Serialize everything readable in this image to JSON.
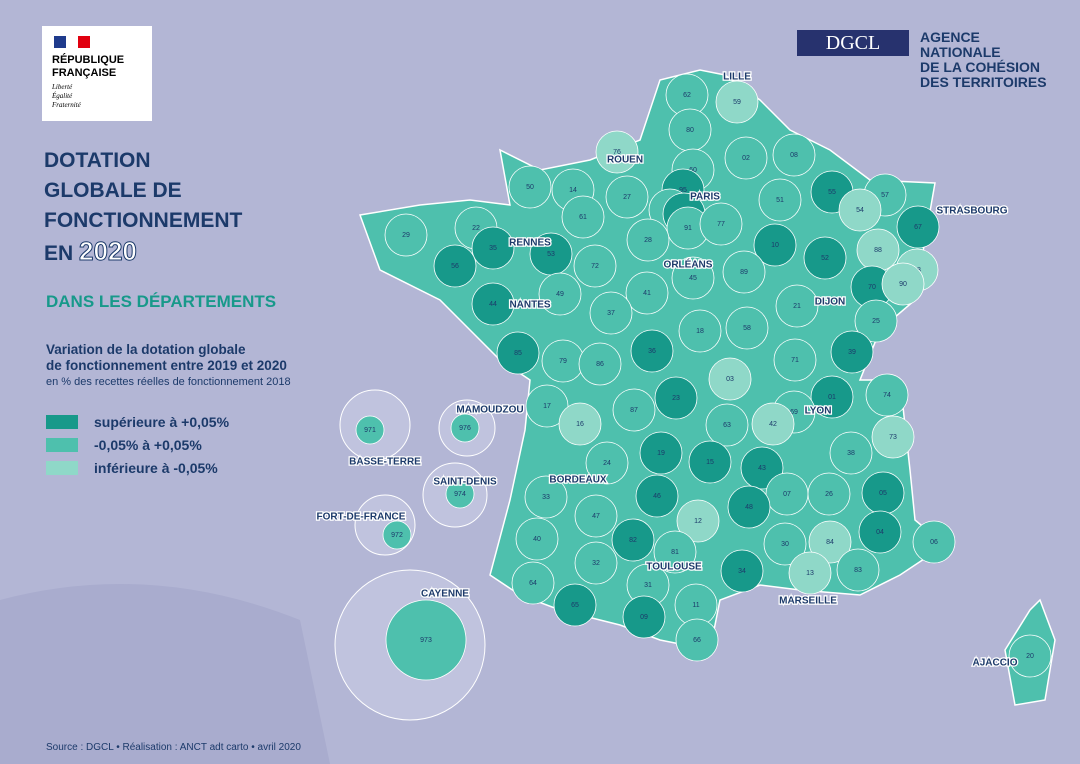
{
  "header": {
    "republic": [
      "RÉPUBLIQUE",
      "FRANÇAISE"
    ],
    "motto": [
      "Liberté",
      "Égalité",
      "Fraternité"
    ],
    "dgcl": "DGCL",
    "agency": [
      "AGENCE",
      "NATIONALE",
      "DE LA COHÉSION",
      "DES TERRITOIRES"
    ]
  },
  "title": [
    "DOTATION",
    "GLOBALE DE",
    "FONCTIONNEMENT",
    "EN"
  ],
  "title_year": "2020",
  "subtitle": "DANS LES DÉPARTEMENTS",
  "legend": {
    "title": [
      "Variation de la dotation globale",
      "de fonctionnement entre 2019 et 2020"
    ],
    "note": "en % des recettes réelles de fonctionnement 2018",
    "items": [
      {
        "label": "supérieure à +0,05%",
        "color": "#17998a"
      },
      {
        "label": "-0,05% à +0,05%",
        "color": "#4ec0ad"
      },
      {
        "label": "inférieure à -0,05%",
        "color": "#8fd8c8"
      }
    ]
  },
  "departments": [
    {
      "code": "62",
      "level": 1
    },
    {
      "code": "59",
      "level": 2
    },
    {
      "code": "80",
      "level": 1
    },
    {
      "code": "76",
      "level": 2
    },
    {
      "code": "02",
      "level": 1
    },
    {
      "code": "08",
      "level": 1
    },
    {
      "code": "60",
      "level": 1
    },
    {
      "code": "50",
      "level": 1
    },
    {
      "code": "14",
      "level": 1
    },
    {
      "code": "27",
      "level": 1
    },
    {
      "code": "95",
      "level": 0
    },
    {
      "code": "51",
      "level": 1
    },
    {
      "code": "55",
      "level": 0
    },
    {
      "code": "57",
      "level": 1
    },
    {
      "code": "54",
      "level": 2
    },
    {
      "code": "67",
      "level": 0
    },
    {
      "code": "29",
      "level": 1
    },
    {
      "code": "22",
      "level": 1
    },
    {
      "code": "35",
      "level": 0
    },
    {
      "code": "61",
      "level": 1
    },
    {
      "code": "78",
      "level": 1
    },
    {
      "code": "92",
      "level": 0
    },
    {
      "code": "91",
      "level": 1
    },
    {
      "code": "77",
      "level": 1
    },
    {
      "code": "28",
      "level": 1
    },
    {
      "code": "10",
      "level": 0
    },
    {
      "code": "52",
      "level": 0
    },
    {
      "code": "88",
      "level": 2
    },
    {
      "code": "56",
      "level": 0
    },
    {
      "code": "53",
      "level": 0
    },
    {
      "code": "72",
      "level": 1
    },
    {
      "code": "45",
      "level": 1
    },
    {
      "code": "89",
      "level": 1
    },
    {
      "code": "68",
      "level": 2
    },
    {
      "code": "70",
      "level": 0
    },
    {
      "code": "90",
      "level": 2
    },
    {
      "code": "44",
      "level": 0
    },
    {
      "code": "49",
      "level": 1
    },
    {
      "code": "41",
      "level": 1
    },
    {
      "code": "21",
      "level": 1
    },
    {
      "code": "37",
      "level": 1
    },
    {
      "code": "18",
      "level": 1
    },
    {
      "code": "58",
      "level": 1
    },
    {
      "code": "25",
      "level": 1
    },
    {
      "code": "85",
      "level": 0
    },
    {
      "code": "79",
      "level": 1
    },
    {
      "code": "86",
      "level": 1
    },
    {
      "code": "36",
      "level": 0
    },
    {
      "code": "71",
      "level": 1
    },
    {
      "code": "39",
      "level": 0
    },
    {
      "code": "03",
      "level": 2
    },
    {
      "code": "17",
      "level": 1
    },
    {
      "code": "16",
      "level": 2
    },
    {
      "code": "87",
      "level": 1
    },
    {
      "code": "23",
      "level": 0
    },
    {
      "code": "01",
      "level": 0
    },
    {
      "code": "69",
      "level": 1
    },
    {
      "code": "74",
      "level": 1
    },
    {
      "code": "42",
      "level": 2
    },
    {
      "code": "63",
      "level": 1
    },
    {
      "code": "19",
      "level": 0
    },
    {
      "code": "15",
      "level": 0
    },
    {
      "code": "43",
      "level": 0
    },
    {
      "code": "38",
      "level": 1
    },
    {
      "code": "73",
      "level": 2
    },
    {
      "code": "24",
      "level": 1
    },
    {
      "code": "33",
      "level": 1
    },
    {
      "code": "46",
      "level": 0
    },
    {
      "code": "07",
      "level": 1
    },
    {
      "code": "26",
      "level": 1
    },
    {
      "code": "05",
      "level": 0
    },
    {
      "code": "12",
      "level": 2
    },
    {
      "code": "47",
      "level": 1
    },
    {
      "code": "48",
      "level": 0
    },
    {
      "code": "40",
      "level": 1
    },
    {
      "code": "82",
      "level": 0
    },
    {
      "code": "81",
      "level": 1
    },
    {
      "code": "30",
      "level": 1
    },
    {
      "code": "84",
      "level": 2
    },
    {
      "code": "04",
      "level": 0
    },
    {
      "code": "06",
      "level": 1
    },
    {
      "code": "32",
      "level": 1
    },
    {
      "code": "34",
      "level": 0
    },
    {
      "code": "13",
      "level": 2
    },
    {
      "code": "83",
      "level": 1
    },
    {
      "code": "31",
      "level": 1
    },
    {
      "code": "64",
      "level": 1
    },
    {
      "code": "65",
      "level": 0
    },
    {
      "code": "09",
      "level": 0
    },
    {
      "code": "11",
      "level": 1
    },
    {
      "code": "66",
      "level": 1
    },
    {
      "code": "20",
      "level": 1
    },
    {
      "code": "971",
      "level": 1
    },
    {
      "code": "976",
      "level": 1
    },
    {
      "code": "974",
      "level": 1
    },
    {
      "code": "972",
      "level": 1
    },
    {
      "code": "973",
      "level": 1
    }
  ],
  "cities": [
    "LILLE",
    "ROUEN",
    "PARIS",
    "STRASBOURG",
    "RENNES",
    "ORLÉANS",
    "NANTES",
    "DIJON",
    "LYON",
    "BORDEAUX",
    "TOULOUSE",
    "MARSEILLE",
    "AJACCIO",
    "MAMOUDZOU",
    "BASSE-TERRE",
    "SAINT-DENIS",
    "FORT-DE-FRANCE",
    "CAYENNE"
  ],
  "source": "Source : DGCL • Réalisation : ANCT adt carto • avril 2020"
}
